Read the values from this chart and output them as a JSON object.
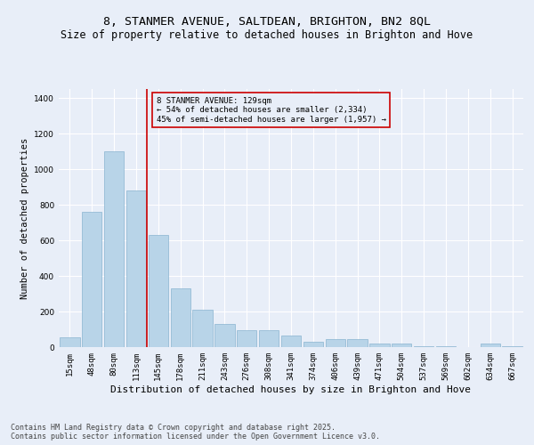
{
  "title": "8, STANMER AVENUE, SALTDEAN, BRIGHTON, BN2 8QL",
  "subtitle": "Size of property relative to detached houses in Brighton and Hove",
  "xlabel": "Distribution of detached houses by size in Brighton and Hove",
  "ylabel": "Number of detached properties",
  "categories": [
    "15sqm",
    "48sqm",
    "80sqm",
    "113sqm",
    "145sqm",
    "178sqm",
    "211sqm",
    "243sqm",
    "276sqm",
    "308sqm",
    "341sqm",
    "374sqm",
    "406sqm",
    "439sqm",
    "471sqm",
    "504sqm",
    "537sqm",
    "569sqm",
    "602sqm",
    "634sqm",
    "667sqm"
  ],
  "values": [
    55,
    760,
    1100,
    880,
    630,
    330,
    210,
    130,
    95,
    95,
    65,
    30,
    45,
    45,
    20,
    20,
    5,
    5,
    0,
    20,
    5
  ],
  "bar_color": "#b8d4e8",
  "bar_edge_color": "#8ab4d0",
  "bg_color": "#e8eef8",
  "grid_color": "#ffffff",
  "vline_x": 3.5,
  "vline_color": "#cc0000",
  "annotation_text": "8 STANMER AVENUE: 129sqm\n← 54% of detached houses are smaller (2,334)\n45% of semi-detached houses are larger (1,957) →",
  "annotation_box_color": "#cc0000",
  "annotation_text_color": "#000000",
  "footnote": "Contains HM Land Registry data © Crown copyright and database right 2025.\nContains public sector information licensed under the Open Government Licence v3.0.",
  "ylim": [
    0,
    1450
  ],
  "title_fontsize": 9.5,
  "subtitle_fontsize": 8.5,
  "xlabel_fontsize": 8,
  "ylabel_fontsize": 7.5,
  "tick_fontsize": 6.5,
  "footnote_fontsize": 6,
  "annot_fontsize": 6.5
}
